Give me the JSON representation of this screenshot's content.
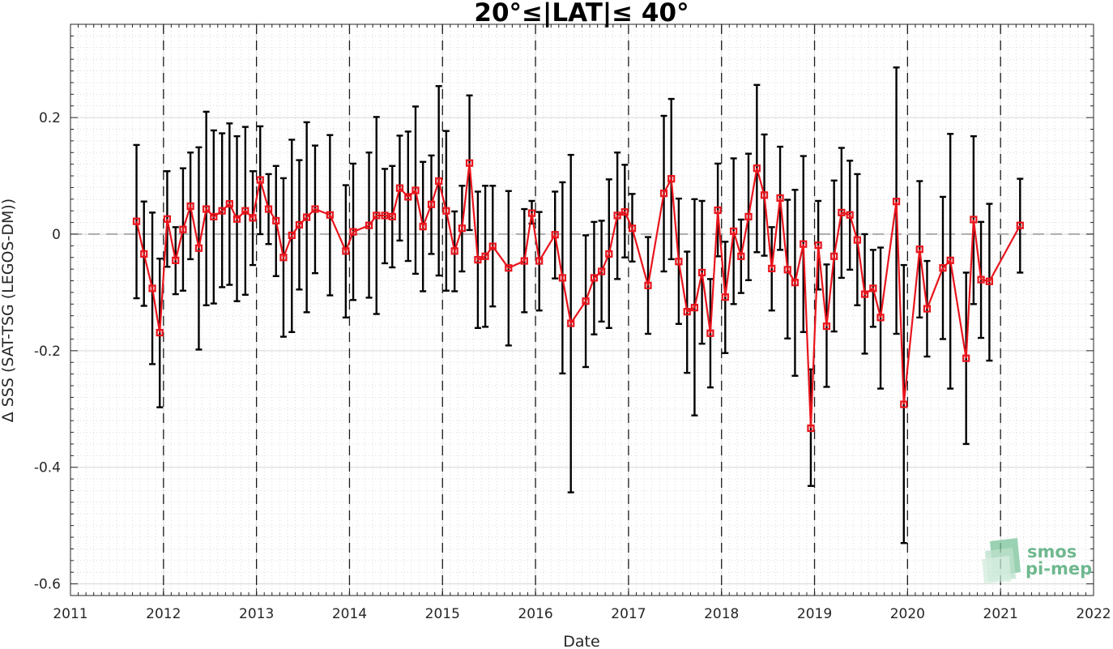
{
  "chart_data": {
    "type": "line",
    "title": "20°≤|LAT|≤ 40°",
    "xlabel": "Date",
    "ylabel": "Δ SSS (SAT-TSG (LEGOS-DM))",
    "xlim": [
      2011,
      2022
    ],
    "ylim": [
      -0.62,
      0.36
    ],
    "xticks": [
      "2011",
      "2012",
      "2013",
      "2014",
      "2015",
      "2016",
      "2017",
      "2018",
      "2019",
      "2020",
      "2021",
      "2022"
    ],
    "yticks": [
      "-0.6",
      "-0.4",
      "-0.2",
      "0",
      "0.2"
    ],
    "grid": true,
    "reference_line_y": 0,
    "year_divider_lines": true,
    "series": [
      {
        "color": "#e8141c",
        "marker": "square",
        "errorbar_color": "#000000",
        "points": [
          {
            "x": 2011.71,
            "y": 0.022,
            "lo": -0.11,
            "hi": 0.153
          },
          {
            "x": 2011.79,
            "y": -0.034,
            "lo": -0.123,
            "hi": 0.056
          },
          {
            "x": 2011.88,
            "y": -0.093,
            "lo": -0.223,
            "hi": 0.037
          },
          {
            "x": 2011.96,
            "y": -0.169,
            "lo": -0.297,
            "hi": -0.042
          },
          {
            "x": 2012.04,
            "y": 0.026,
            "lo": -0.056,
            "hi": 0.108
          },
          {
            "x": 2012.13,
            "y": -0.045,
            "lo": -0.103,
            "hi": 0.012
          },
          {
            "x": 2012.21,
            "y": 0.008,
            "lo": -0.097,
            "hi": 0.113
          },
          {
            "x": 2012.29,
            "y": 0.048,
            "lo": -0.043,
            "hi": 0.14
          },
          {
            "x": 2012.38,
            "y": -0.024,
            "lo": -0.198,
            "hi": 0.149
          },
          {
            "x": 2012.46,
            "y": 0.043,
            "lo": -0.122,
            "hi": 0.21
          },
          {
            "x": 2012.54,
            "y": 0.03,
            "lo": -0.119,
            "hi": 0.178
          },
          {
            "x": 2012.63,
            "y": 0.04,
            "lo": -0.091,
            "hi": 0.173
          },
          {
            "x": 2012.71,
            "y": 0.052,
            "lo": -0.087,
            "hi": 0.19
          },
          {
            "x": 2012.79,
            "y": 0.026,
            "lo": -0.115,
            "hi": 0.168
          },
          {
            "x": 2012.88,
            "y": 0.04,
            "lo": -0.104,
            "hi": 0.184
          },
          {
            "x": 2012.96,
            "y": 0.028,
            "lo": -0.053,
            "hi": 0.108
          },
          {
            "x": 2013.04,
            "y": 0.093,
            "lo": 0.0,
            "hi": 0.185
          },
          {
            "x": 2013.13,
            "y": 0.043,
            "lo": -0.017,
            "hi": 0.103
          },
          {
            "x": 2013.21,
            "y": 0.023,
            "lo": -0.072,
            "hi": 0.117
          },
          {
            "x": 2013.29,
            "y": -0.04,
            "lo": -0.176,
            "hi": 0.096
          },
          {
            "x": 2013.38,
            "y": -0.002,
            "lo": -0.168,
            "hi": 0.162
          },
          {
            "x": 2013.46,
            "y": 0.016,
            "lo": -0.095,
            "hi": 0.127
          },
          {
            "x": 2013.54,
            "y": 0.029,
            "lo": -0.134,
            "hi": 0.192
          },
          {
            "x": 2013.63,
            "y": 0.043,
            "lo": -0.067,
            "hi": 0.152
          },
          {
            "x": 2013.79,
            "y": 0.033,
            "lo": -0.105,
            "hi": 0.17
          },
          {
            "x": 2013.96,
            "y": -0.029,
            "lo": -0.143,
            "hi": 0.084
          },
          {
            "x": 2014.04,
            "y": 0.004,
            "lo": -0.113,
            "hi": 0.121
          },
          {
            "x": 2014.21,
            "y": 0.015,
            "lo": -0.109,
            "hi": 0.14
          },
          {
            "x": 2014.29,
            "y": 0.032,
            "lo": -0.137,
            "hi": 0.201
          },
          {
            "x": 2014.38,
            "y": 0.032,
            "lo": -0.05,
            "hi": 0.112
          },
          {
            "x": 2014.46,
            "y": 0.03,
            "lo": -0.057,
            "hi": 0.117
          },
          {
            "x": 2014.54,
            "y": 0.079,
            "lo": -0.011,
            "hi": 0.169
          },
          {
            "x": 2014.63,
            "y": 0.064,
            "lo": -0.046,
            "hi": 0.176
          },
          {
            "x": 2014.71,
            "y": 0.075,
            "lo": -0.068,
            "hi": 0.219
          },
          {
            "x": 2014.79,
            "y": 0.013,
            "lo": -0.098,
            "hi": 0.124
          },
          {
            "x": 2014.88,
            "y": 0.051,
            "lo": -0.034,
            "hi": 0.135
          },
          {
            "x": 2014.96,
            "y": 0.091,
            "lo": -0.071,
            "hi": 0.254
          },
          {
            "x": 2015.04,
            "y": 0.04,
            "lo": -0.097,
            "hi": 0.177
          },
          {
            "x": 2015.13,
            "y": -0.029,
            "lo": -0.098,
            "hi": 0.039
          },
          {
            "x": 2015.21,
            "y": 0.01,
            "lo": -0.064,
            "hi": 0.083
          },
          {
            "x": 2015.29,
            "y": 0.122,
            "lo": 0.007,
            "hi": 0.238
          },
          {
            "x": 2015.38,
            "y": -0.044,
            "lo": -0.161,
            "hi": 0.073
          },
          {
            "x": 2015.46,
            "y": -0.038,
            "lo": -0.159,
            "hi": 0.083
          },
          {
            "x": 2015.54,
            "y": -0.021,
            "lo": -0.124,
            "hi": 0.083
          },
          {
            "x": 2015.71,
            "y": -0.058,
            "lo": -0.191,
            "hi": 0.074
          },
          {
            "x": 2015.88,
            "y": -0.046,
            "lo": -0.134,
            "hi": 0.043
          },
          {
            "x": 2015.96,
            "y": 0.036,
            "lo": 0.018,
            "hi": 0.057
          },
          {
            "x": 2016.04,
            "y": -0.046,
            "lo": -0.131,
            "hi": 0.038
          },
          {
            "x": 2016.21,
            "y": -0.001,
            "lo": -0.076,
            "hi": 0.073
          },
          {
            "x": 2016.29,
            "y": -0.075,
            "lo": -0.239,
            "hi": 0.089
          },
          {
            "x": 2016.38,
            "y": -0.153,
            "lo": -0.443,
            "hi": 0.136
          },
          {
            "x": 2016.54,
            "y": -0.115,
            "lo": -0.228,
            "hi": -0.002
          },
          {
            "x": 2016.63,
            "y": -0.075,
            "lo": -0.172,
            "hi": 0.021
          },
          {
            "x": 2016.71,
            "y": -0.064,
            "lo": -0.15,
            "hi": 0.023
          },
          {
            "x": 2016.79,
            "y": -0.034,
            "lo": -0.161,
            "hi": 0.094
          },
          {
            "x": 2016.88,
            "y": 0.032,
            "lo": -0.077,
            "hi": 0.14
          },
          {
            "x": 2016.96,
            "y": 0.038,
            "lo": -0.04,
            "hi": 0.119
          },
          {
            "x": 2017.04,
            "y": 0.01,
            "lo": -0.047,
            "hi": 0.069
          },
          {
            "x": 2017.21,
            "y": -0.088,
            "lo": -0.171,
            "hi": -0.005
          },
          {
            "x": 2017.38,
            "y": 0.07,
            "lo": -0.064,
            "hi": 0.203
          },
          {
            "x": 2017.46,
            "y": 0.095,
            "lo": -0.043,
            "hi": 0.232
          },
          {
            "x": 2017.54,
            "y": -0.047,
            "lo": -0.154,
            "hi": 0.061
          },
          {
            "x": 2017.63,
            "y": -0.133,
            "lo": -0.238,
            "hi": -0.03
          },
          {
            "x": 2017.71,
            "y": -0.126,
            "lo": -0.311,
            "hi": 0.06
          },
          {
            "x": 2017.79,
            "y": -0.066,
            "lo": -0.188,
            "hi": 0.057
          },
          {
            "x": 2017.88,
            "y": -0.17,
            "lo": -0.263,
            "hi": -0.077
          },
          {
            "x": 2017.96,
            "y": 0.041,
            "lo": -0.038,
            "hi": 0.121
          },
          {
            "x": 2018.04,
            "y": -0.108,
            "lo": -0.204,
            "hi": -0.013
          },
          {
            "x": 2018.13,
            "y": 0.005,
            "lo": -0.12,
            "hi": 0.13
          },
          {
            "x": 2018.21,
            "y": -0.038,
            "lo": -0.101,
            "hi": 0.025
          },
          {
            "x": 2018.29,
            "y": 0.03,
            "lo": -0.079,
            "hi": 0.138
          },
          {
            "x": 2018.38,
            "y": 0.113,
            "lo": -0.031,
            "hi": 0.256
          },
          {
            "x": 2018.46,
            "y": 0.067,
            "lo": -0.037,
            "hi": 0.171
          },
          {
            "x": 2018.54,
            "y": -0.059,
            "lo": -0.131,
            "hi": 0.012
          },
          {
            "x": 2018.63,
            "y": 0.062,
            "lo": -0.027,
            "hi": 0.15
          },
          {
            "x": 2018.71,
            "y": -0.061,
            "lo": -0.179,
            "hi": 0.059
          },
          {
            "x": 2018.79,
            "y": -0.083,
            "lo": -0.243,
            "hi": 0.076
          },
          {
            "x": 2018.88,
            "y": -0.017,
            "lo": -0.168,
            "hi": 0.134
          },
          {
            "x": 2018.96,
            "y": -0.333,
            "lo": -0.432,
            "hi": -0.232
          },
          {
            "x": 2019.04,
            "y": -0.019,
            "lo": -0.095,
            "hi": 0.057
          },
          {
            "x": 2019.13,
            "y": -0.158,
            "lo": -0.262,
            "hi": -0.052
          },
          {
            "x": 2019.21,
            "y": -0.038,
            "lo": -0.167,
            "hi": 0.092
          },
          {
            "x": 2019.29,
            "y": 0.037,
            "lo": -0.075,
            "hi": 0.148
          },
          {
            "x": 2019.38,
            "y": 0.033,
            "lo": -0.061,
            "hi": 0.126
          },
          {
            "x": 2019.46,
            "y": -0.01,
            "lo": -0.122,
            "hi": 0.103
          },
          {
            "x": 2019.54,
            "y": -0.103,
            "lo": -0.205,
            "hi": 0.0
          },
          {
            "x": 2019.63,
            "y": -0.093,
            "lo": -0.159,
            "hi": -0.027
          },
          {
            "x": 2019.71,
            "y": -0.143,
            "lo": -0.265,
            "hi": -0.023
          },
          {
            "x": 2019.88,
            "y": 0.056,
            "lo": -0.171,
            "hi": 0.286
          },
          {
            "x": 2019.96,
            "y": -0.292,
            "lo": -0.53,
            "hi": -0.053
          },
          {
            "x": 2020.13,
            "y": -0.026,
            "lo": -0.143,
            "hi": 0.091
          },
          {
            "x": 2020.21,
            "y": -0.128,
            "lo": -0.21,
            "hi": -0.046
          },
          {
            "x": 2020.38,
            "y": -0.058,
            "lo": -0.18,
            "hi": 0.064
          },
          {
            "x": 2020.46,
            "y": -0.045,
            "lo": -0.265,
            "hi": 0.172
          },
          {
            "x": 2020.63,
            "y": -0.213,
            "lo": -0.36,
            "hi": -0.066
          },
          {
            "x": 2020.71,
            "y": 0.025,
            "lo": -0.12,
            "hi": 0.168
          },
          {
            "x": 2020.79,
            "y": -0.078,
            "lo": -0.178,
            "hi": 0.021
          },
          {
            "x": 2020.88,
            "y": -0.081,
            "lo": -0.217,
            "hi": 0.052
          },
          {
            "x": 2021.21,
            "y": 0.015,
            "lo": -0.066,
            "hi": 0.095
          }
        ]
      }
    ]
  },
  "logo": {
    "line1": "smos",
    "line2": "pi-mep",
    "color": "#6fb88f"
  }
}
